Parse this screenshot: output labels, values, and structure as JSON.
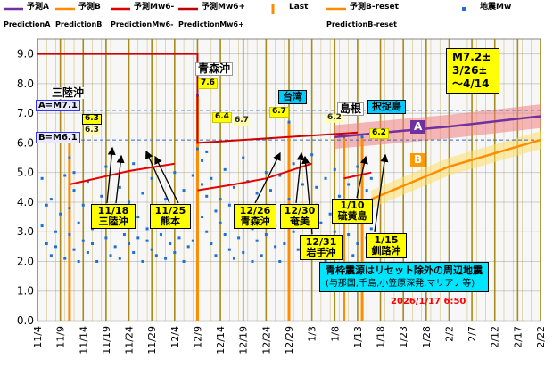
{
  "chart_data": {
    "type": "line",
    "legend": [
      {
        "label": "予測A",
        "sub": "PredictionA",
        "color": "#7030a0",
        "kind": "line"
      },
      {
        "label": "予測B",
        "sub": "PredictionB",
        "color": "#ff8c00",
        "kind": "line"
      },
      {
        "label": "予測Mw6-",
        "sub": "PredictionMw6-",
        "color": "#e00000",
        "kind": "line"
      },
      {
        "label": "予測Mw6+",
        "sub": "PredictionMw6+",
        "color": "#c00000",
        "kind": "line"
      },
      {
        "label": "Last",
        "sub": "",
        "color": "#ff8c00",
        "kind": "bar"
      },
      {
        "label": "予測B-reset",
        "sub": "PredictionB-reset",
        "color": "#ff8c00",
        "kind": "line"
      },
      {
        "label": "地震Mw",
        "sub": "",
        "color": "#1e6fd9",
        "kind": "marker"
      }
    ],
    "x_ticks": [
      "11/4",
      "11/9",
      "11/14",
      "11/19",
      "11/24",
      "11/29",
      "12/4",
      "12/9",
      "12/14",
      "12/19",
      "12/24",
      "12/29",
      "1/3",
      "1/8",
      "1/13",
      "1/18",
      "1/23",
      "1/28",
      "2/2",
      "2/7",
      "2/12",
      "2/17",
      "2/22"
    ],
    "x_ticks_day": [
      0,
      5,
      10,
      15,
      20,
      25,
      30,
      35,
      40,
      45,
      50,
      55,
      60,
      65,
      70,
      75,
      80,
      85,
      90,
      95,
      100,
      105,
      110
    ],
    "xlim_day": [
      0,
      110
    ],
    "y_ticks": [
      "0.0",
      "1.0",
      "2.0",
      "3.0",
      "4.0",
      "5.0",
      "6.0",
      "7.0",
      "8.0",
      "9.0"
    ],
    "ylim": [
      0,
      9.5
    ],
    "grid": true,
    "series": {
      "mw6plus": [
        [
          0,
          9.0
        ],
        [
          35,
          9.0
        ],
        [
          35,
          6.0
        ],
        [
          70,
          6.35
        ]
      ],
      "mw6minus_1": [
        [
          7,
          4.6
        ],
        [
          10,
          4.7
        ],
        [
          20,
          5.05
        ],
        [
          30,
          5.3
        ]
      ],
      "mw6minus_2": [
        [
          35,
          4.4
        ],
        [
          43,
          4.6
        ],
        [
          50,
          4.8
        ],
        [
          60,
          5.3
        ]
      ],
      "mw6minus_3": [
        [
          67,
          4.8
        ],
        [
          70,
          4.9
        ],
        [
          73,
          5.0
        ]
      ],
      "predA": [
        [
          65,
          6.2
        ],
        [
          90,
          6.55
        ],
        [
          110,
          6.9
        ]
      ],
      "predB": [
        [
          73,
          4.1
        ],
        [
          90,
          5.2
        ],
        [
          110,
          6.1
        ]
      ]
    },
    "ref_lines": [
      {
        "y": 7.1,
        "label": "A=M7.1"
      },
      {
        "y": 6.1,
        "label": "B=M6.1"
      }
    ],
    "vbars": [
      {
        "day": 7,
        "mag": 6.3,
        "color": "#ff8c00"
      },
      {
        "day": 35,
        "mag": 7.6,
        "color": "#ff8c00"
      },
      {
        "day": 55,
        "mag": 6.7,
        "color": "#ff8c00"
      },
      {
        "day": 67,
        "mag": 6.2,
        "color": "#ff8c00"
      },
      {
        "day": 71,
        "mag": 6.2,
        "color": "#ff8c00"
      }
    ],
    "mw": [
      [
        1,
        4.8
      ],
      [
        1,
        3.2
      ],
      [
        2,
        2.6
      ],
      [
        2,
        3.9
      ],
      [
        3,
        2.2
      ],
      [
        3,
        4.1
      ],
      [
        4,
        3.0
      ],
      [
        4,
        2.5
      ],
      [
        5,
        3.6
      ],
      [
        6,
        2.1
      ],
      [
        6,
        4.9
      ],
      [
        7,
        5.5
      ],
      [
        7,
        6.2
      ],
      [
        7,
        3.8
      ],
      [
        7,
        2.9
      ],
      [
        8,
        2.4
      ],
      [
        8,
        4.4
      ],
      [
        8,
        5.0
      ],
      [
        9,
        3.3
      ],
      [
        9,
        2.0
      ],
      [
        10,
        2.7
      ],
      [
        10,
        3.9
      ],
      [
        11,
        2.3
      ],
      [
        11,
        4.7
      ],
      [
        12,
        3.1
      ],
      [
        12,
        2.6
      ],
      [
        13,
        3.6
      ],
      [
        13,
        2.0
      ],
      [
        14,
        4.2
      ],
      [
        15,
        2.8
      ],
      [
        15,
        5.2
      ],
      [
        16,
        2.2
      ],
      [
        16,
        3.4
      ],
      [
        17,
        2.5
      ],
      [
        17,
        3.9
      ],
      [
        18,
        2.1
      ],
      [
        18,
        4.5
      ],
      [
        19,
        2.9
      ],
      [
        19,
        3.2
      ],
      [
        20,
        2.6
      ],
      [
        20,
        4.0
      ],
      [
        21,
        5.3
      ],
      [
        21,
        2.3
      ],
      [
        22,
        3.5
      ],
      [
        22,
        2.8
      ],
      [
        23,
        2.0
      ],
      [
        23,
        4.3
      ],
      [
        24,
        2.7
      ],
      [
        24,
        3.1
      ],
      [
        25,
        2.4
      ],
      [
        25,
        4.8
      ],
      [
        26,
        3.3
      ],
      [
        26,
        2.2
      ],
      [
        27,
        2.9
      ],
      [
        27,
        3.8
      ],
      [
        28,
        2.1
      ],
      [
        28,
        4.1
      ],
      [
        29,
        2.6
      ],
      [
        29,
        3.4
      ],
      [
        30,
        2.3
      ],
      [
        30,
        5.0
      ],
      [
        31,
        2.8
      ],
      [
        31,
        3.7
      ],
      [
        32,
        2.0
      ],
      [
        32,
        4.4
      ],
      [
        33,
        2.5
      ],
      [
        33,
        3.2
      ],
      [
        34,
        4.9
      ],
      [
        34,
        2.7
      ],
      [
        35,
        7.6
      ],
      [
        35,
        5.8
      ],
      [
        36,
        4.6
      ],
      [
        36,
        3.5
      ],
      [
        36,
        5.4
      ],
      [
        37,
        4.2
      ],
      [
        37,
        3.0
      ],
      [
        37,
        5.7
      ],
      [
        38,
        2.6
      ],
      [
        38,
        4.8
      ],
      [
        39,
        3.7
      ],
      [
        39,
        2.2
      ],
      [
        40,
        4.1
      ],
      [
        40,
        3.3
      ],
      [
        41,
        2.9
      ],
      [
        41,
        5.1
      ],
      [
        42,
        2.4
      ],
      [
        42,
        3.9
      ],
      [
        43,
        4.5
      ],
      [
        43,
        2.1
      ],
      [
        44,
        3.6
      ],
      [
        44,
        2.8
      ],
      [
        45,
        5.5
      ],
      [
        45,
        2.3
      ],
      [
        46,
        3.4
      ],
      [
        46,
        4.7
      ],
      [
        47,
        2.0
      ],
      [
        47,
        3.1
      ],
      [
        48,
        4.3
      ],
      [
        48,
        2.7
      ],
      [
        49,
        3.8
      ],
      [
        49,
        2.2
      ],
      [
        50,
        5.0
      ],
      [
        50,
        2.9
      ],
      [
        51,
        3.5
      ],
      [
        51,
        4.4
      ],
      [
        52,
        2.5
      ],
      [
        52,
        3.2
      ],
      [
        53,
        4.9
      ],
      [
        53,
        2.0
      ],
      [
        54,
        3.7
      ],
      [
        54,
        2.6
      ],
      [
        55,
        6.7
      ],
      [
        55,
        4.1
      ],
      [
        56,
        3.0
      ],
      [
        56,
        5.3
      ],
      [
        57,
        2.4
      ],
      [
        57,
        3.8
      ],
      [
        58,
        4.6
      ],
      [
        58,
        2.2
      ],
      [
        59,
        3.4
      ],
      [
        59,
        2.8
      ],
      [
        60,
        5.6
      ],
      [
        60,
        2.1
      ],
      [
        61,
        3.9
      ],
      [
        61,
        4.5
      ],
      [
        62,
        2.7
      ],
      [
        62,
        3.3
      ],
      [
        63,
        2.0
      ],
      [
        63,
        4.8
      ],
      [
        64,
        3.6
      ],
      [
        64,
        2.5
      ],
      [
        65,
        5.1
      ],
      [
        65,
        3.0
      ],
      [
        66,
        4.2
      ],
      [
        66,
        2.3
      ],
      [
        67,
        6.2
      ],
      [
        67,
        3.7
      ],
      [
        68,
        2.9
      ],
      [
        68,
        4.6
      ],
      [
        69,
        2.2
      ],
      [
        69,
        3.4
      ],
      [
        70,
        5.2
      ],
      [
        70,
        2.6
      ],
      [
        71,
        6.2
      ],
      [
        71,
        3.9
      ],
      [
        72,
        4.4
      ],
      [
        72,
        2.8
      ],
      [
        73,
        3.1
      ],
      [
        73,
        4.8
      ]
    ]
  },
  "annotations": {
    "sanriku_top": "三陸沖",
    "aomori_top": "青森沖",
    "aomori_top_mag": "7.6",
    "taiwan": "台湾",
    "taiwan_mag": "6.7",
    "shimane": "島根",
    "etorofu": "択捉島",
    "shimane_mag": "6.2",
    "etorofu_mag": "6.2",
    "mag_6_3a": "6.3",
    "mag_6_3b": "6.3",
    "mag_6_4": "6.4",
    "mag_6_7b": "6.7",
    "label_A": "A",
    "label_B": "B",
    "ref_A": "A=M7.1",
    "ref_B": "B=M6.1",
    "forecast_line1": "M7.2±",
    "forecast_line2": "3/26±",
    "forecast_line3": "～4/14",
    "e_1118_date": "11/18",
    "e_1118_name": "三陸沖",
    "e_1125_date": "11/25",
    "e_1125_name": "熊本",
    "e_1226_date": "12/26",
    "e_1226_name": "青森沖",
    "e_1230_date": "12/30",
    "e_1230_name": "奄美",
    "e_1231_date": "12/31",
    "e_1231_name": "岩手沖",
    "e_0110_date": "1/10",
    "e_0110_name": "硫黄島",
    "e_0115_date": "1/15",
    "e_0115_name": "釧路沖",
    "info_line1": "青枠震源はリセット除外の周辺地震",
    "info_line2": "(与那国,千島,小笠原深発,マリアナ等)",
    "timestamp": "2026/1/17 6:50"
  },
  "colors": {
    "plot_bg": "#f7f7f7",
    "grid_v": "#a08000",
    "grid_h": "#cccccc",
    "mw6plus": "#cc0000",
    "mw6minus": "#e60000",
    "predA": "#7030a0",
    "predA_band": "#f08080",
    "predB": "#ff8c00",
    "predB_band": "#ffe066",
    "ref": "#3366cc",
    "arrow": "#000000",
    "mw_dot": "#1e6fd9",
    "A_chip": "#7030a0",
    "B_chip": "#ff9900"
  }
}
